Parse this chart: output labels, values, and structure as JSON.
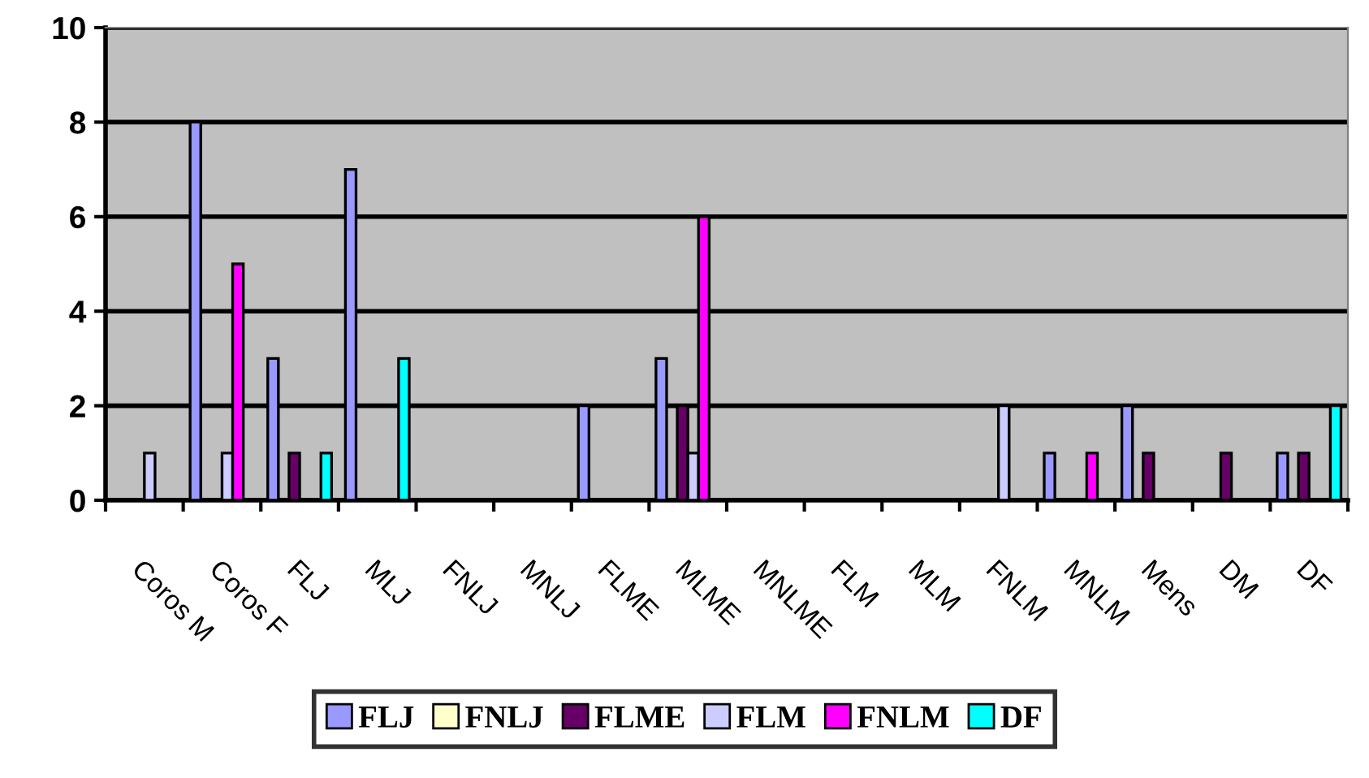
{
  "chart_data": {
    "type": "bar",
    "categories": [
      "Coros M",
      "Coros F",
      "FLJ",
      "MLJ",
      "FNLJ",
      "MNLJ",
      "FLME",
      "MLME",
      "MNLME",
      "FLM",
      "MLM",
      "FNLM",
      "MNLM",
      "Mens",
      "DM",
      "DF"
    ],
    "series": [
      {
        "name": "FLJ",
        "color": "#9999ff",
        "values": [
          null,
          8,
          3,
          7,
          null,
          null,
          2,
          3,
          null,
          null,
          null,
          null,
          1,
          2,
          null,
          1
        ]
      },
      {
        "name": "FNLJ",
        "color": "#ffffcc",
        "values": [
          null,
          null,
          null,
          null,
          null,
          null,
          null,
          null,
          null,
          null,
          null,
          null,
          null,
          null,
          null,
          null
        ]
      },
      {
        "name": "FLME",
        "color": "#660066",
        "values": [
          null,
          null,
          1,
          null,
          null,
          null,
          null,
          2,
          null,
          null,
          null,
          null,
          null,
          1,
          1,
          1
        ]
      },
      {
        "name": "FLM",
        "color": "#ccccff",
        "values": [
          1,
          1,
          null,
          null,
          null,
          null,
          null,
          1,
          null,
          null,
          null,
          2,
          null,
          null,
          null,
          null
        ]
      },
      {
        "name": "FNLM",
        "color": "#ff00ff",
        "values": [
          null,
          5,
          null,
          null,
          null,
          null,
          null,
          6,
          null,
          null,
          null,
          null,
          1,
          null,
          null,
          null
        ]
      },
      {
        "name": "DF",
        "color": "#00ffff",
        "values": [
          null,
          null,
          1,
          3,
          null,
          null,
          null,
          null,
          null,
          null,
          null,
          null,
          null,
          null,
          null,
          2
        ]
      }
    ],
    "ylim": [
      0,
      10
    ],
    "yticks": [
      0,
      2,
      4,
      6,
      8,
      10
    ],
    "grid": "y",
    "legend": "bottom"
  }
}
